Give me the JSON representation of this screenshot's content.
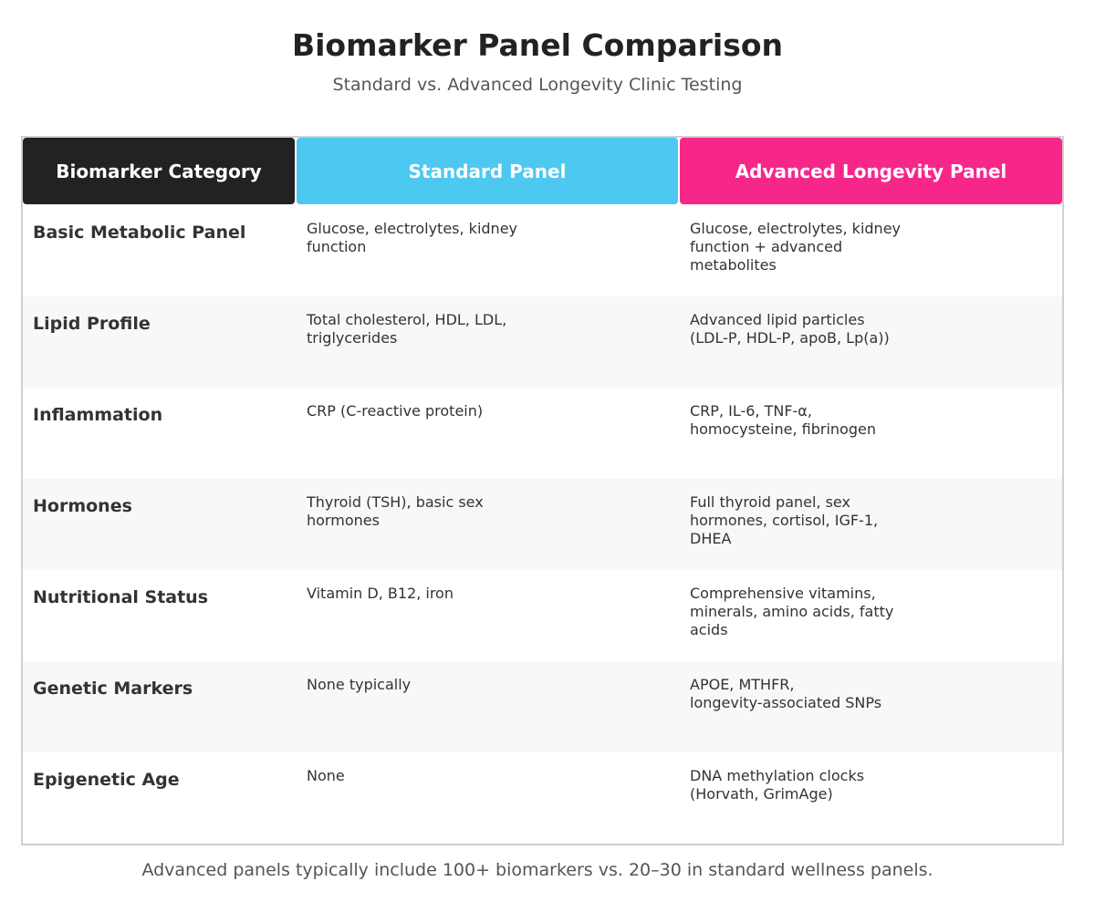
{
  "title": "Biomarker Panel Comparison",
  "subtitle": "Standard vs. Advanced Longevity Clinic Testing",
  "colors": {
    "category_header": "#222222",
    "standard_header": "#4dc8f0",
    "advanced_header": "#f7278a"
  },
  "headers": [
    "Biomarker Category",
    "Standard Panel",
    "Advanced Longevity Panel"
  ],
  "rows": [
    {
      "category": "Basic Metabolic Panel",
      "standard": "Glucose, electrolytes, kidney\nfunction",
      "advanced": "Glucose, electrolytes, kidney\nfunction + advanced\nmetabolites"
    },
    {
      "category": "Lipid Profile",
      "standard": "Total cholesterol, HDL, LDL,\ntriglycerides",
      "advanced": "Advanced lipid particles\n(LDL-P, HDL-P, apoB, Lp(a))"
    },
    {
      "category": "Inflammation",
      "standard": "CRP (C-reactive protein)",
      "advanced": "CRP, IL-6, TNF-α,\nhomocysteine, fibrinogen"
    },
    {
      "category": "Hormones",
      "standard": "Thyroid (TSH), basic sex\nhormones",
      "advanced": "Full thyroid panel, sex\nhormones, cortisol, IGF-1,\nDHEA"
    },
    {
      "category": "Nutritional Status",
      "standard": "Vitamin D, B12, iron",
      "advanced": "Comprehensive vitamins,\nminerals, amino acids, fatty\nacids"
    },
    {
      "category": "Genetic Markers",
      "standard": "None typically",
      "advanced": "APOE, MTHFR,\nlongevity-associated SNPs"
    },
    {
      "category": "Epigenetic Age",
      "standard": "None",
      "advanced": "DNA methylation clocks\n(Horvath, GrimAge)"
    }
  ],
  "footer": "Advanced panels typically include 100+ biomarkers vs. 20–30 in standard wellness panels."
}
